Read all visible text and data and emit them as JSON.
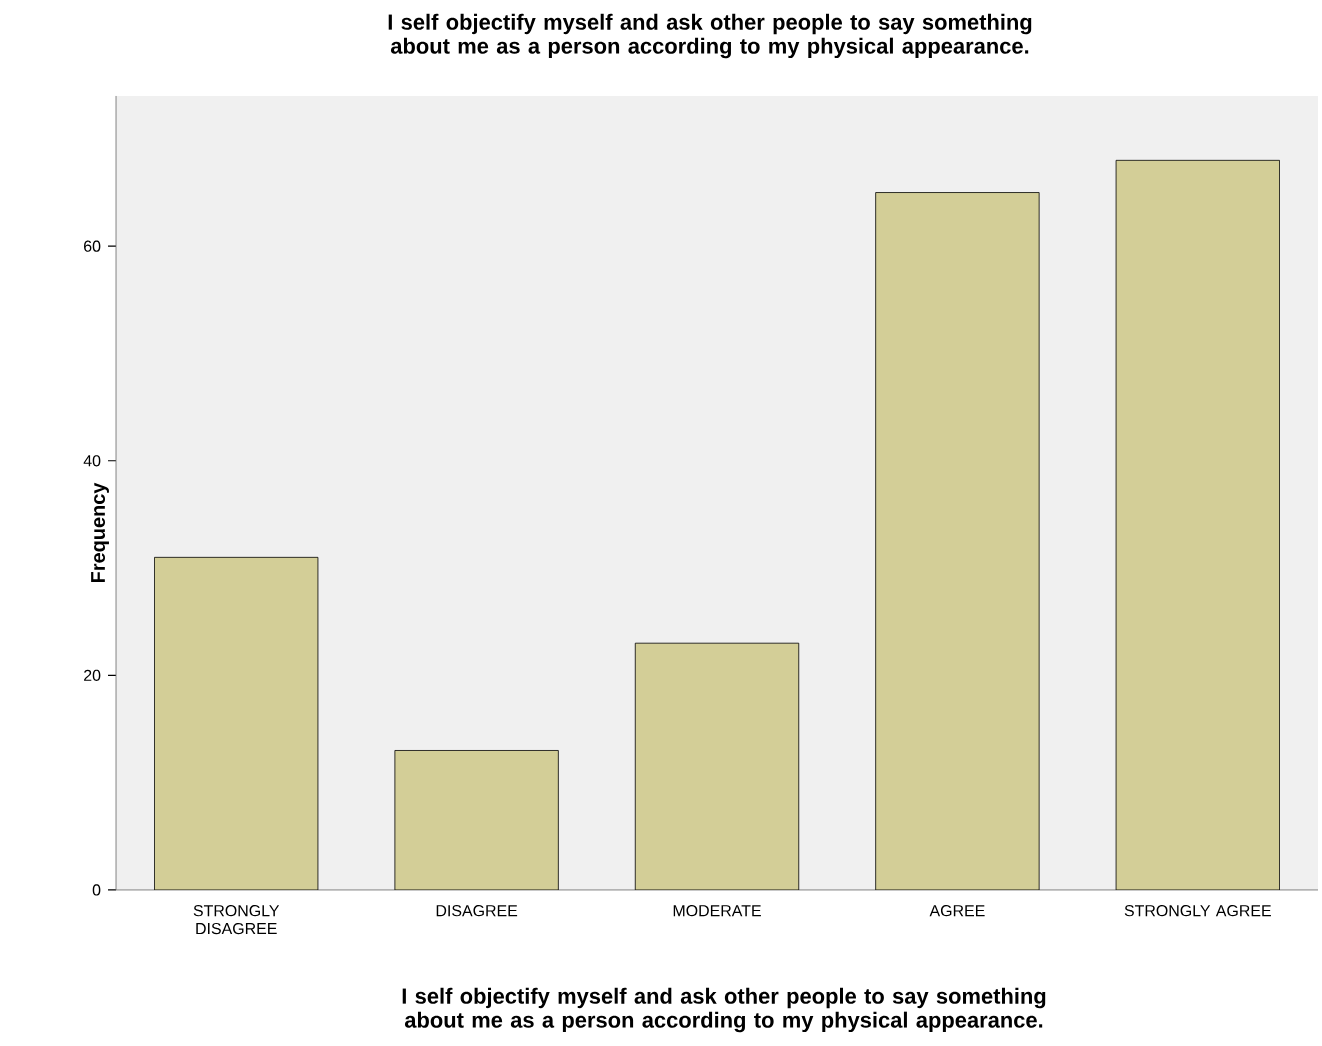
{
  "chart_data": {
    "type": "bar",
    "title": "I self objectify myself and ask other people to say something about me as a person according to my physical appearance.",
    "xlabel": "I self objectify myself and ask other people to say something about me as a person according to my physical appearance.",
    "ylabel": "Frequency",
    "categories": [
      "STRONGLY DISAGREE",
      "DISAGREE",
      "MODERATE",
      "AGREE",
      "STRONGLY AGREE"
    ],
    "values": [
      31,
      13,
      23,
      65,
      68
    ],
    "color": "#d3ce97",
    "ylim": [
      0,
      74
    ],
    "yticks": [
      0,
      20,
      40,
      60
    ]
  }
}
